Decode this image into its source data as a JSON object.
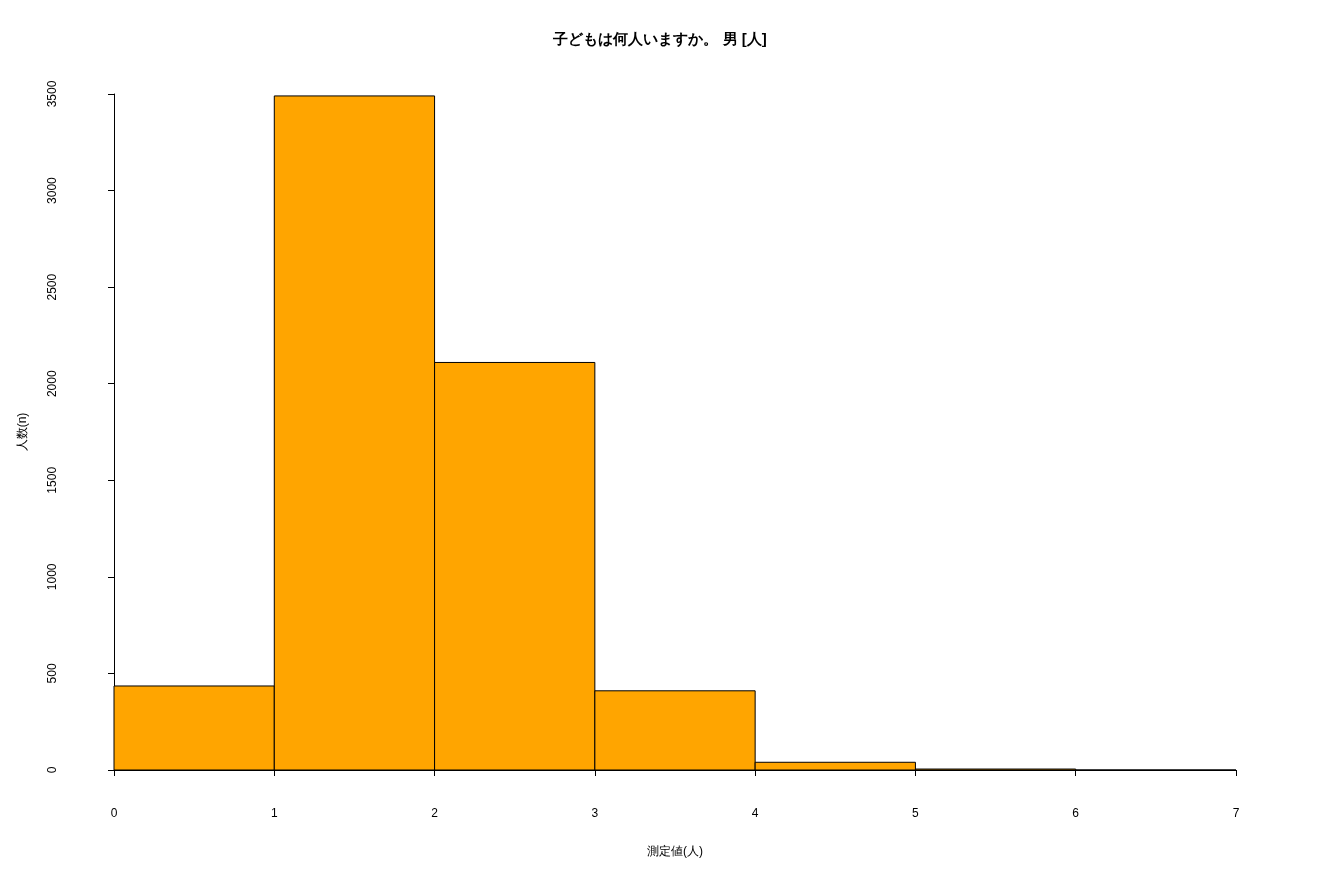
{
  "chart_data": {
    "type": "histogram",
    "title": "子どもは何人いますか。 男 [人]",
    "xlabel": "測定値(人)",
    "ylabel": "人数(n)",
    "bins": [
      0,
      1,
      2,
      3,
      4,
      5,
      6,
      7
    ],
    "values": [
      435,
      3490,
      2110,
      410,
      40,
      5,
      null
    ],
    "color": "#ffa500",
    "xlim": [
      0,
      7
    ],
    "xticks": [
      0,
      1,
      2,
      3,
      4,
      5,
      6,
      7
    ],
    "ylim": [
      0,
      3500
    ],
    "yticks": [
      0,
      500,
      1000,
      1500,
      2000,
      2500,
      3000,
      3500
    ],
    "grid": false
  }
}
